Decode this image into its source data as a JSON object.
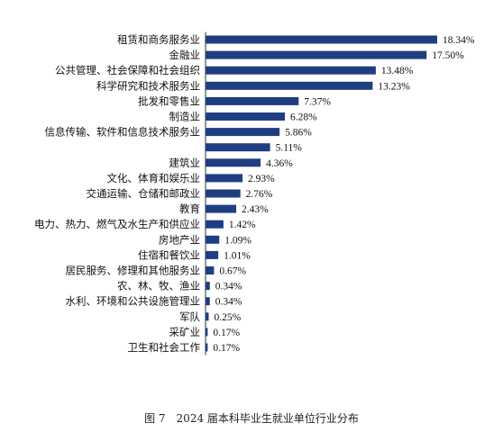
{
  "caption": "图 7　2024 届本科毕业生就业单位行业分布",
  "colors": {
    "bar": "#1f3e82",
    "axis": "#333333",
    "text": "#111111"
  },
  "chart_data": {
    "type": "bar",
    "orientation": "horizontal",
    "unit": "%",
    "xlim": [
      0,
      18.34
    ],
    "categories": [
      "租赁和商务服务业",
      "金融业",
      "公共管理、社会保障和社会组织",
      "科学研究和技术服务业",
      "批发和零售业",
      "制造业",
      "信息传输、软件和信息技术服务业",
      "",
      "建筑业",
      "文化、体育和娱乐业",
      "交通运输、仓储和邮政业",
      "教育",
      "电力、热力、燃气及水生产和供应业",
      "房地产业",
      "住宿和餐饮业",
      "居民服务、修理和其他服务业",
      "农、林、牧、渔业",
      "水利、环境和公共设施管理业",
      "军队",
      "采矿业",
      "卫生和社会工作"
    ],
    "values": [
      18.34,
      17.5,
      13.48,
      13.23,
      7.37,
      6.28,
      5.86,
      5.11,
      4.36,
      2.93,
      2.76,
      2.43,
      1.42,
      1.09,
      1.01,
      0.67,
      0.34,
      0.34,
      0.25,
      0.17,
      0.17
    ],
    "value_labels": [
      "18.34%",
      "17.50%",
      "13.48%",
      "13.23%",
      "7.37%",
      "6.28%",
      "5.86%",
      "5.11%",
      "4.36%",
      "2.93%",
      "2.76%",
      "2.43%",
      "1.42%",
      "1.09%",
      "1.01%",
      "0.67%",
      "0.34%",
      "0.34%",
      "0.25%",
      "0.17%",
      "0.17%"
    ],
    "grid": false,
    "legend": "none"
  }
}
